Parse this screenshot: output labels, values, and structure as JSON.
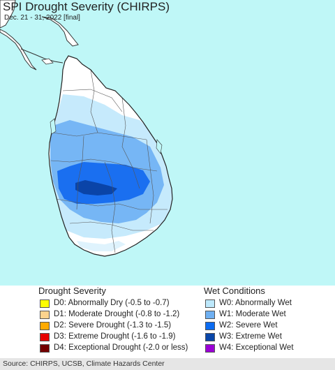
{
  "map": {
    "title": "SPI Drought Severity (CHIRPS)",
    "subtitle": "Dec. 21 - 31, 2022 [final]",
    "colors": {
      "ocean": "#bff7f7",
      "land": "#ffffff",
      "border": "#555555",
      "w0": "#c6eafc",
      "w1": "#76b6f5",
      "w2": "#1a6ff0",
      "w3": "#0a44a8",
      "pale": "#dff3fd"
    }
  },
  "legend": {
    "drought_heading": "Drought Severity",
    "wet_heading": "Wet Conditions",
    "drought_items": [
      {
        "label": "D0: Abnormally Dry (-0.5 to -0.7)",
        "color": "#ffff00"
      },
      {
        "label": "D1: Moderate Drought (-0.8 to -1.2)",
        "color": "#fcd38d"
      },
      {
        "label": "D2: Severe Drought (-1.3 to -1.5)",
        "color": "#ffaa00"
      },
      {
        "label": "D3: Extreme Drought (-1.6 to -1.9)",
        "color": "#e60000"
      },
      {
        "label": "D4: Exceptional Drought (-2.0 or less)",
        "color": "#730000"
      }
    ],
    "wet_items": [
      {
        "label": "W0: Abnormally Wet",
        "color": "#bde8fb"
      },
      {
        "label": "W1: Moderate Wet",
        "color": "#6fb0f2"
      },
      {
        "label": "W2: Severe Wet",
        "color": "#0c6cf2"
      },
      {
        "label": "W3: Extreme Wet",
        "color": "#0a46a8"
      },
      {
        "label": "W4: Exceptional Wet",
        "color": "#9b00d6"
      }
    ]
  },
  "footer": {
    "source": "Source: CHIRPS, UCSB, Climate Hazards Center"
  }
}
